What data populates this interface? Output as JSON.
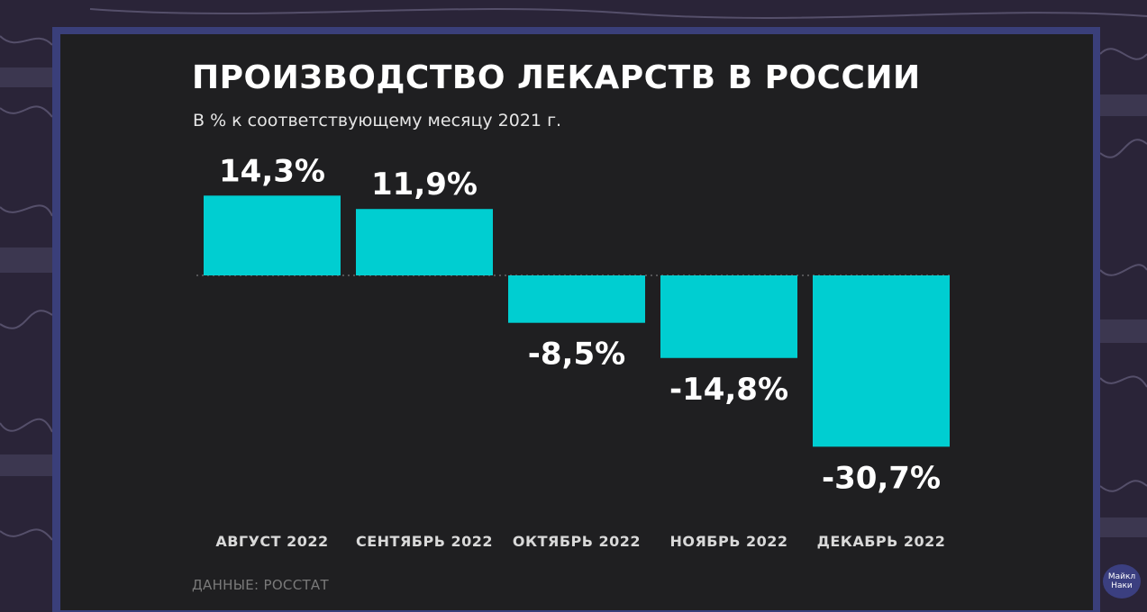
{
  "header": {
    "title": "ПРОИЗВОДСТВО ЛЕКАРСТВ В РОССИИ",
    "subtitle": "В % к соответствующему месяцу 2021 г."
  },
  "footer": {
    "source": "ДАННЫЕ: РОССТАТ"
  },
  "watermark": {
    "text": "Майкл Наки"
  },
  "colors": {
    "bar": "#00ced1",
    "panel": "#1f1f21",
    "frame": "#3a3f7a",
    "text": "#ffffff",
    "muted": "#7a7a7a"
  },
  "chart_data": {
    "type": "bar",
    "title": "ПРОИЗВОДСТВО ЛЕКАРСТВ В РОССИИ",
    "subtitle": "В % к соответствующему месяцу 2021 г.",
    "categories": [
      "АВГУСТ 2022",
      "СЕНТЯБРЬ 2022",
      "ОКТЯБРЬ 2022",
      "НОЯБРЬ 2022",
      "ДЕКАБРЬ 2022"
    ],
    "values": [
      14.3,
      11.9,
      -8.5,
      -14.8,
      -30.7
    ],
    "data_labels": [
      "14,3%",
      "11,9%",
      "-8,5%",
      "-14,8%",
      "-30,7%"
    ],
    "baseline": 0,
    "grid": false,
    "legend": "none"
  }
}
